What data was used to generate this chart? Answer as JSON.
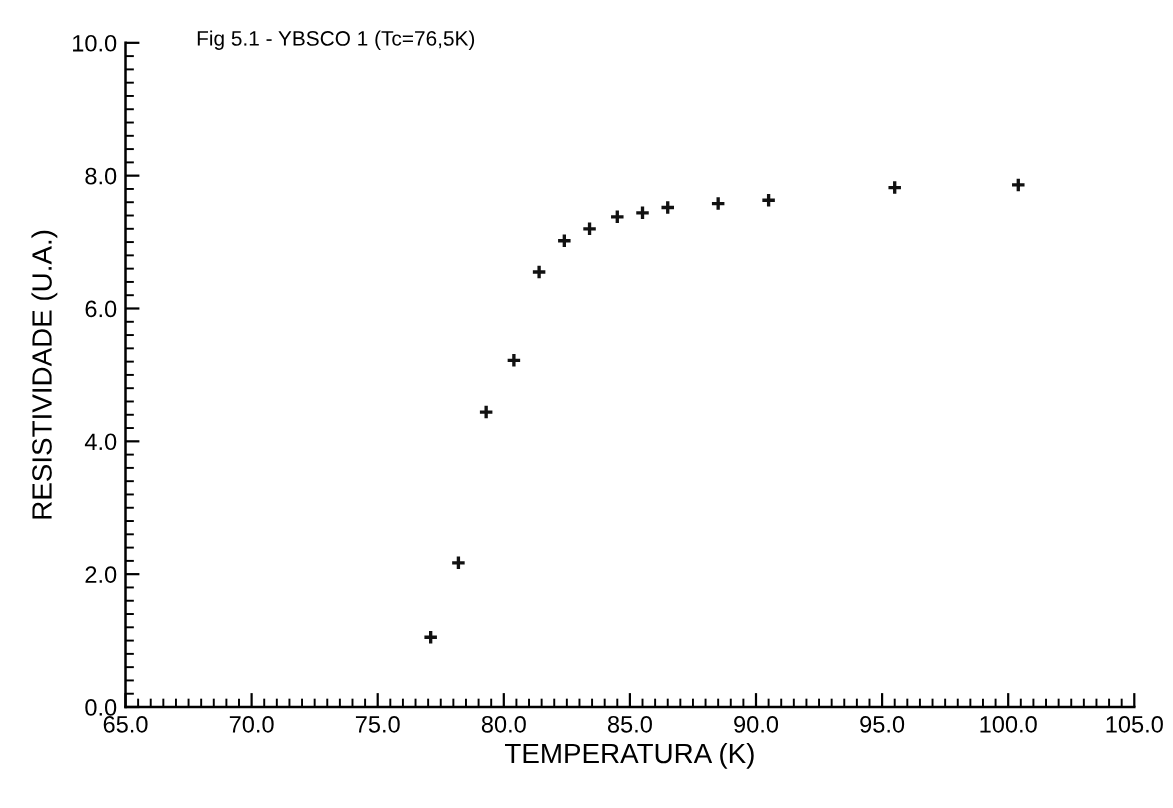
{
  "chart_data": {
    "type": "scatter",
    "title": "Fig 5.1 - YBSCO 1 (Tc=76,5K)",
    "xlabel": "TEMPERATURA (K)",
    "ylabel": "RESISTIVIDADE (U.A.)",
    "x": [
      77.1,
      78.2,
      79.3,
      80.4,
      81.4,
      82.4,
      83.4,
      84.5,
      85.5,
      86.5,
      88.5,
      90.5,
      95.5,
      100.4
    ],
    "series": [
      {
        "color": "#111111",
        "values": [
          1.05,
          2.17,
          4.44,
          5.22,
          6.55,
          7.02,
          7.2,
          7.38,
          7.44,
          7.52,
          7.58,
          7.63,
          7.82,
          7.86
        ]
      }
    ],
    "marker": "cross",
    "xlim": [
      65,
      105
    ],
    "ylim": [
      0,
      10
    ],
    "xticks": [
      {
        "value": 65,
        "label": "65.0"
      },
      {
        "value": 70,
        "label": "70.0"
      },
      {
        "value": 75,
        "label": "75.0"
      },
      {
        "value": 80,
        "label": "80.0"
      },
      {
        "value": 85,
        "label": "85.0"
      },
      {
        "value": 90,
        "label": "90.0"
      },
      {
        "value": 95,
        "label": "95.0"
      },
      {
        "value": 100,
        "label": "100.0"
      },
      {
        "value": 105,
        "label": "105.0"
      }
    ],
    "yticks": [
      {
        "value": 0,
        "label": "0.0"
      },
      {
        "value": 2,
        "label": "2.0"
      },
      {
        "value": 4,
        "label": "4.0"
      },
      {
        "value": 6,
        "label": "6.0"
      },
      {
        "value": 8,
        "label": "8.0"
      },
      {
        "value": 10,
        "label": "10.0"
      }
    ]
  }
}
